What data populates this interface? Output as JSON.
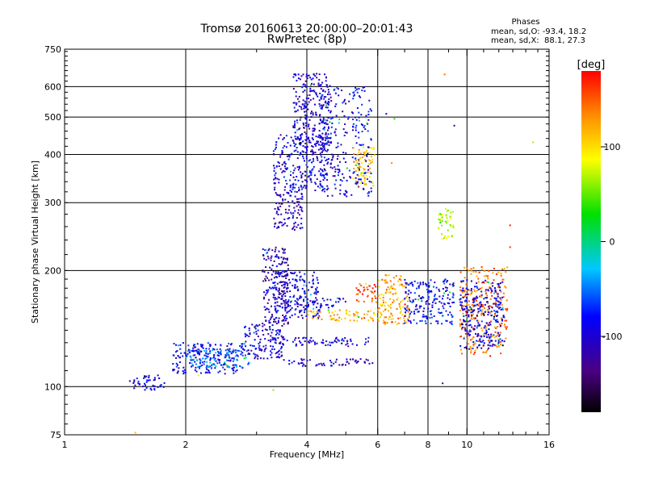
{
  "chart_data": {
    "type": "scatter",
    "title": "Tromsø 20160613 20:00:00–20:01:43",
    "subtitle": "RwPretec (8p)",
    "xlabel": "Frequency [MHz]",
    "ylabel": "Stationary phase Virtual Height [km]",
    "x_scale": "log",
    "y_scale": "log",
    "xlim": [
      1,
      16
    ],
    "ylim": [
      75,
      750
    ],
    "x_ticks": [
      1,
      2,
      4,
      6,
      8,
      10,
      16
    ],
    "y_ticks": [
      75,
      100,
      200,
      300,
      400,
      500,
      600,
      750
    ],
    "grid": true,
    "phases_box": {
      "heading": "Phases",
      "line_o": "mean, sd,O: -93.4, 18.2",
      "line_x": "mean, sd,X:  88.1, 27.3"
    },
    "colorbar": {
      "label": "[deg]",
      "range": [
        -180,
        180
      ],
      "ticks": [
        100,
        0,
        -100
      ],
      "colormap": "rainbow"
    },
    "series": [
      {
        "clusters": [
          {
            "f": [
              1.45,
              1.78
            ],
            "h": [
              98,
              107
            ],
            "phase": -105
          },
          {
            "f": [
              1.85,
              2.8
            ],
            "h": [
              108,
              130
            ],
            "phase": -95
          },
          {
            "f": [
              2.0,
              2.9
            ],
            "h": [
              112,
              125
            ],
            "phase": -60
          },
          {
            "f": [
              2.8,
              3.5
            ],
            "h": [
              118,
              145
            ],
            "phase": -105
          },
          {
            "f": [
              3.1,
              3.6
            ],
            "h": [
              140,
              230
            ],
            "phase": -120
          },
          {
            "f": [
              3.3,
              4.3
            ],
            "h": [
              150,
              200
            ],
            "phase": -100
          },
          {
            "f": [
              3.3,
              3.9
            ],
            "h": [
              255,
              320
            ],
            "phase": -115
          },
          {
            "f": [
              3.3,
              4.5
            ],
            "h": [
              320,
              450
            ],
            "phase": -100
          },
          {
            "f": [
              3.7,
              4.6
            ],
            "h": [
              420,
              650
            ],
            "phase": -110
          },
          {
            "f": [
              4.3,
              5.8
            ],
            "h": [
              310,
              600
            ],
            "phase": -100
          },
          {
            "f": [
              5.2,
              5.9
            ],
            "h": [
              330,
              420
            ],
            "phase": 105
          },
          {
            "f": [
              3.5,
              5.9
            ],
            "h": [
              113,
              118
            ],
            "phase": -110
          },
          {
            "f": [
              3.3,
              5.7
            ],
            "h": [
              127,
              134
            ],
            "phase": -108
          },
          {
            "f": [
              3.8,
              5.0
            ],
            "h": [
              160,
              170
            ],
            "phase": -105
          },
          {
            "f": [
              4.0,
              5.9
            ],
            "h": [
              148,
              158
            ],
            "phase": 110
          },
          {
            "f": [
              5.3,
              6.0
            ],
            "h": [
              165,
              185
            ],
            "phase": 150
          },
          {
            "f": [
              6.0,
              7.2
            ],
            "h": [
              145,
              195
            ],
            "phase": 120
          },
          {
            "f": [
              7.0,
              9.3
            ],
            "h": [
              145,
              190
            ],
            "phase": -90
          },
          {
            "f": [
              8.5,
              9.3
            ],
            "h": [
              240,
              290
            ],
            "phase": 60
          },
          {
            "f": [
              9.6,
              12.6
            ],
            "h": [
              120,
              205
            ],
            "phase": 140
          },
          {
            "f": [
              9.6,
              12.4
            ],
            "h": [
              125,
              190
            ],
            "phase": -100
          }
        ],
        "isolated": [
          {
            "f": 8.8,
            "h": 645,
            "phase": 140
          },
          {
            "f": 9.3,
            "h": 475,
            "phase": -110
          },
          {
            "f": 6.3,
            "h": 510,
            "phase": -110
          },
          {
            "f": 6.6,
            "h": 495,
            "phase": 10
          },
          {
            "f": 6.5,
            "h": 380,
            "phase": 130
          },
          {
            "f": 14.6,
            "h": 430,
            "phase": 50
          },
          {
            "f": 12.8,
            "h": 262,
            "phase": 170
          },
          {
            "f": 12.8,
            "h": 230,
            "phase": 165
          },
          {
            "f": 8.7,
            "h": 102,
            "phase": -125
          },
          {
            "f": 1.5,
            "h": 76,
            "phase": 110
          },
          {
            "f": 2.15,
            "h": 107,
            "phase": 70
          },
          {
            "f": 3.3,
            "h": 98,
            "phase": 40
          }
        ]
      }
    ]
  }
}
